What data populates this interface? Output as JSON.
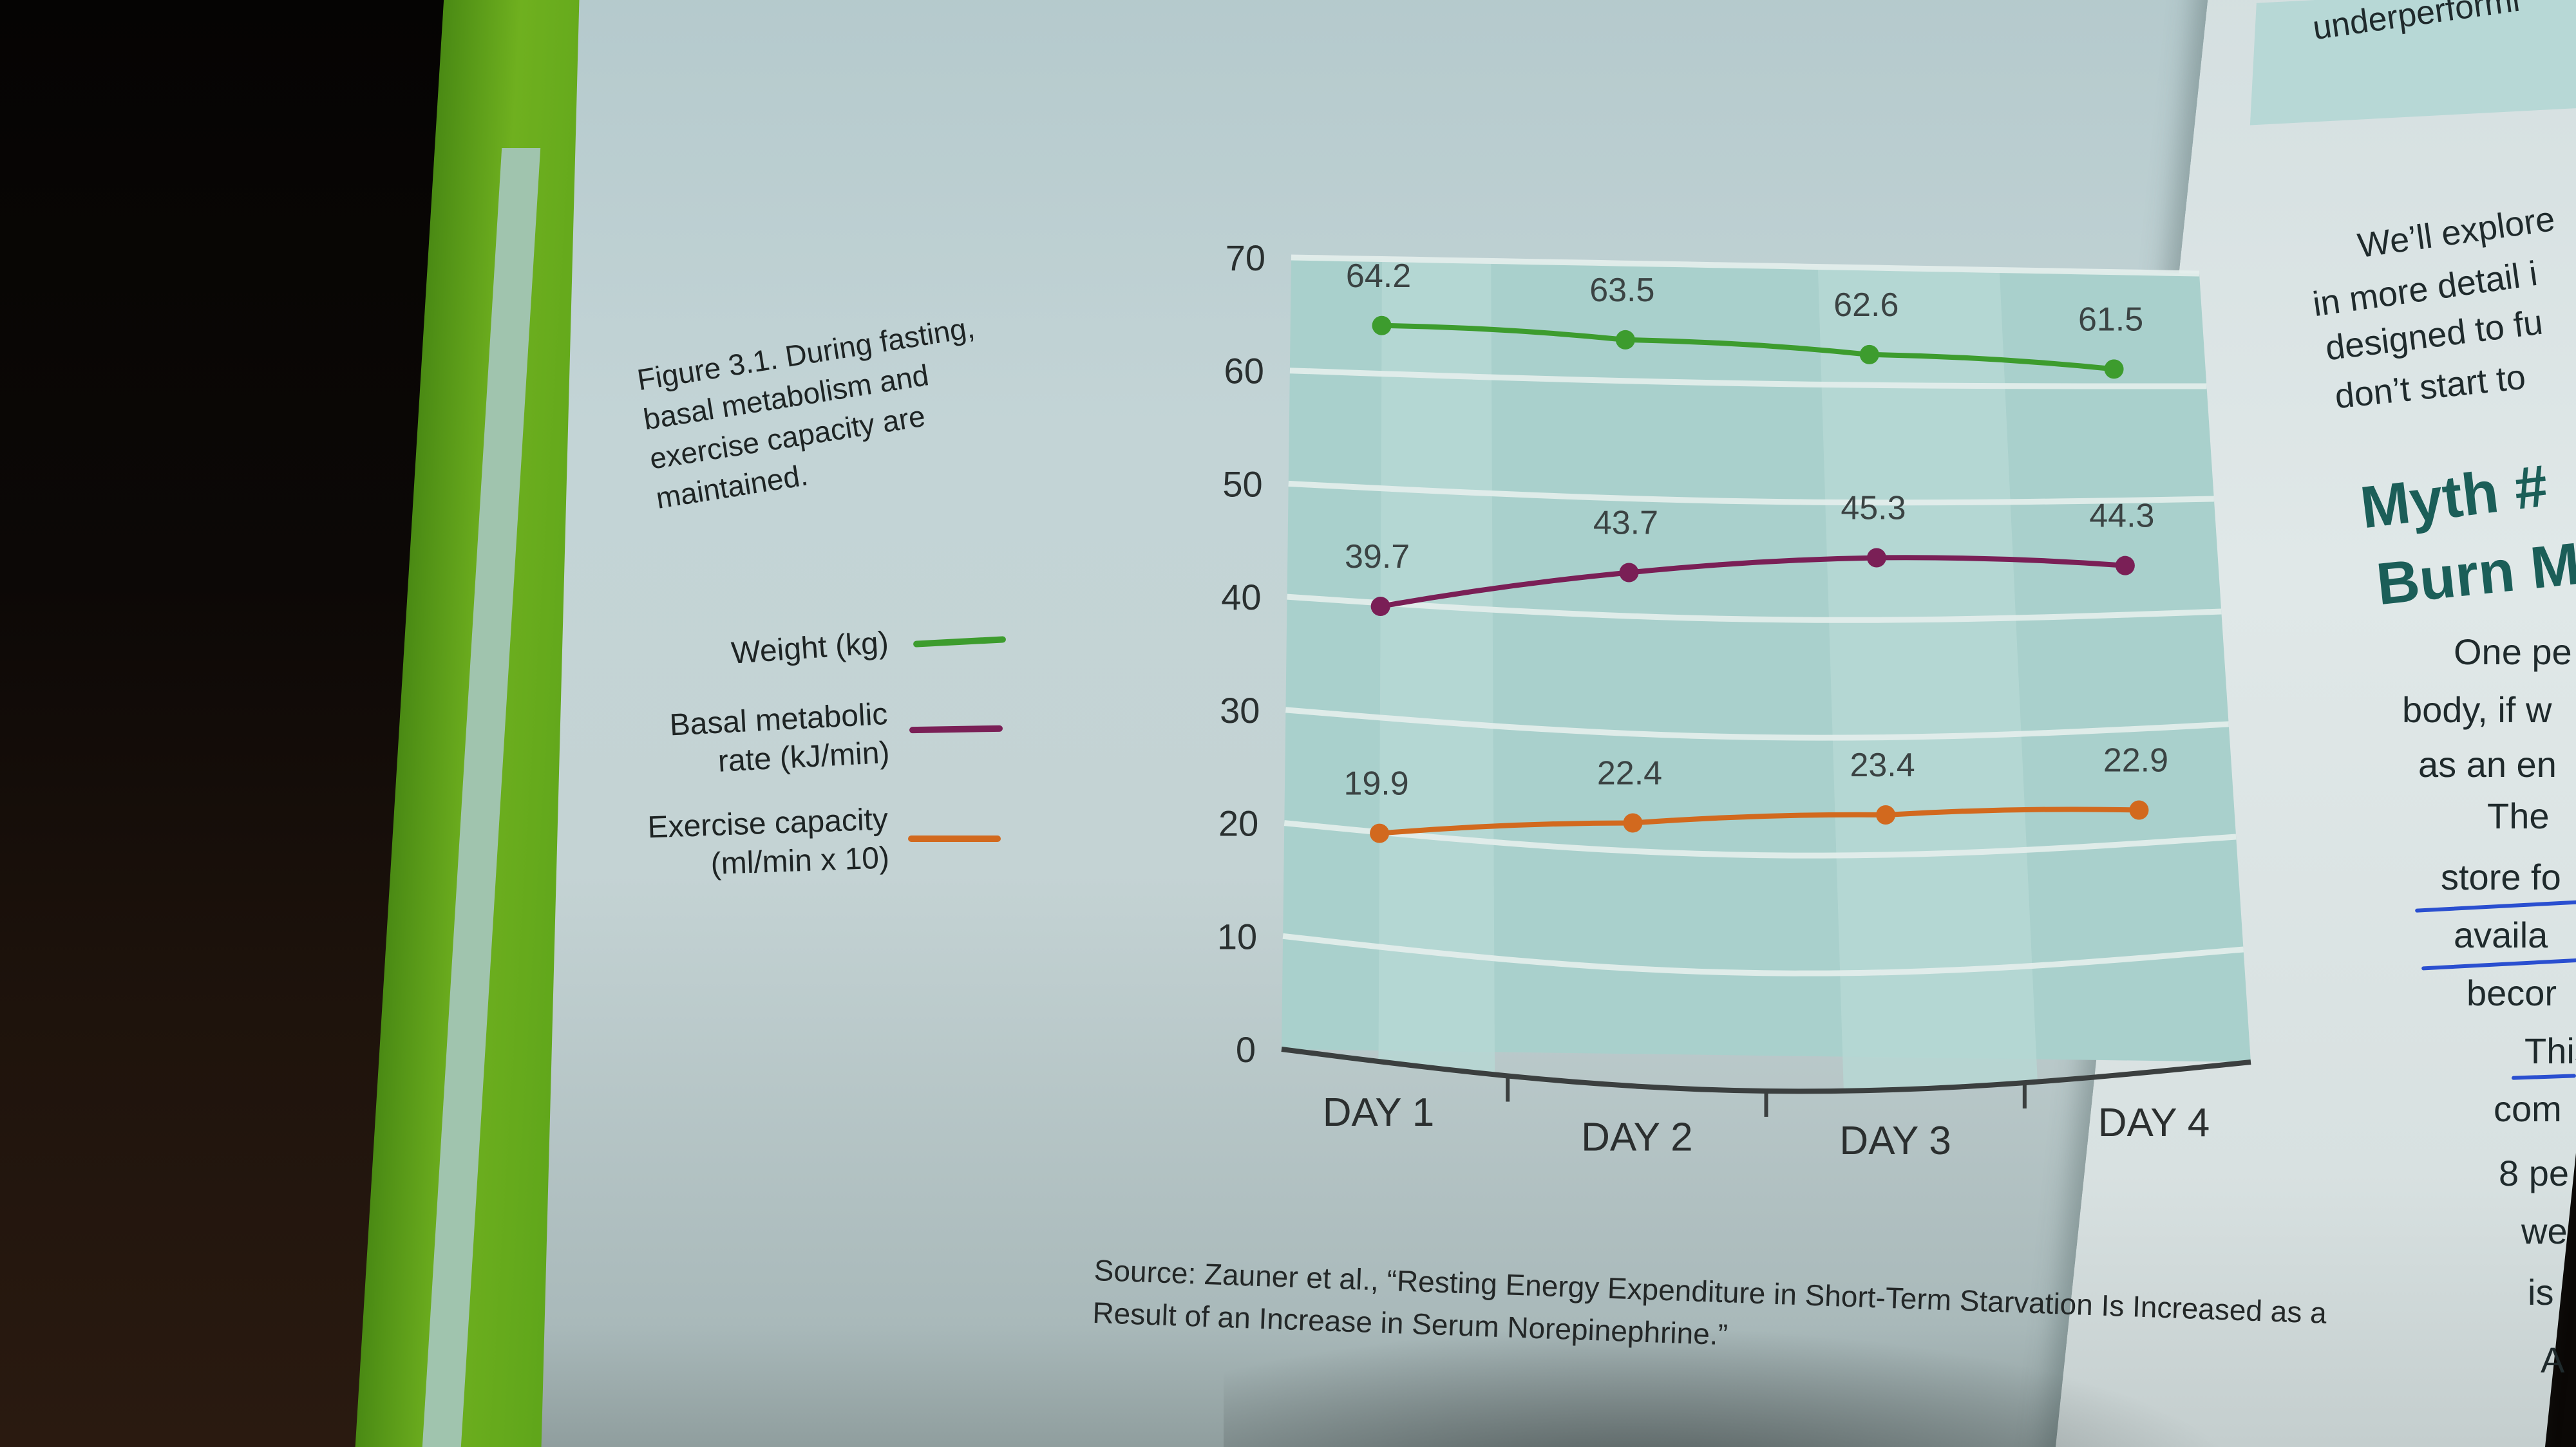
{
  "figure": {
    "caption": "Figure 3.1. During fasting, basal metabolism and exercise capacity are maintained.",
    "source": "Source: Zauner et al., “Resting Energy Expenditure in Short-Term Starvation Is Increased as a Result of an Increase in Serum Norepinephrine.”"
  },
  "colors": {
    "weight": "#3d9c2e",
    "bmr": "#7a1f56",
    "exercise": "#d2691e",
    "plot_bg": "#a9d0cc",
    "plot_band": "#b7d8d4"
  },
  "chart_data": {
    "type": "line",
    "categories": [
      "DAY 1",
      "DAY 2",
      "DAY 3",
      "DAY 4"
    ],
    "ylim": [
      0,
      70
    ],
    "yticks": [
      0,
      10,
      20,
      30,
      40,
      50,
      60,
      70
    ],
    "grid": true,
    "legend_position": "left",
    "series": [
      {
        "name": "Weight (kg)",
        "color": "#3d9c2e",
        "values": [
          64.2,
          63.5,
          62.6,
          61.5
        ]
      },
      {
        "name": "Basal metabolic rate (kJ/min)",
        "color": "#7a1f56",
        "values": [
          39.7,
          43.7,
          45.3,
          44.3
        ]
      },
      {
        "name": "Exercise capacity (ml/min x 10)",
        "color": "#d2691e",
        "values": [
          19.9,
          22.4,
          23.4,
          22.9
        ]
      }
    ]
  },
  "right_page": {
    "top_fragment": "underperformi",
    "para1": [
      "We’ll explore",
      "in more detail i",
      "designed to fu",
      "don’t start to"
    ],
    "heading": [
      "Myth #",
      "Burn M"
    ],
    "para2": [
      "One pe",
      "body, if w",
      "as an en",
      "The",
      "store fo",
      "availa",
      "becor",
      "This",
      "com",
      "8 pe",
      "we",
      "is",
      "A"
    ]
  }
}
